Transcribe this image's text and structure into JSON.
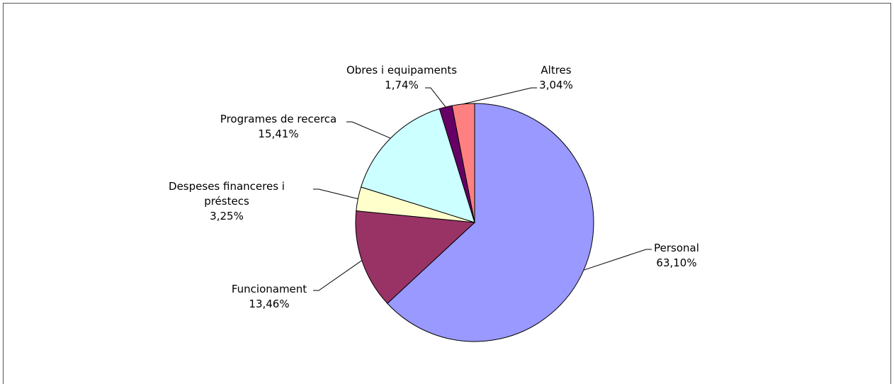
{
  "chart_data": {
    "type": "pie",
    "categories": [
      "Personal",
      "Funcionament",
      "Despeses financeres i préstecs",
      "Programes de recerca",
      "Obres i equipaments",
      "Altres"
    ],
    "values": [
      63.1,
      13.46,
      3.25,
      15.41,
      1.74,
      3.04
    ],
    "value_labels": [
      "63,10%",
      "13,46%",
      "3,25%",
      "15,41%",
      "1,74%",
      "3,04%"
    ],
    "colors": [
      "#9999ff",
      "#993366",
      "#ffffcc",
      "#ccffff",
      "#660066",
      "#ff8080"
    ]
  }
}
